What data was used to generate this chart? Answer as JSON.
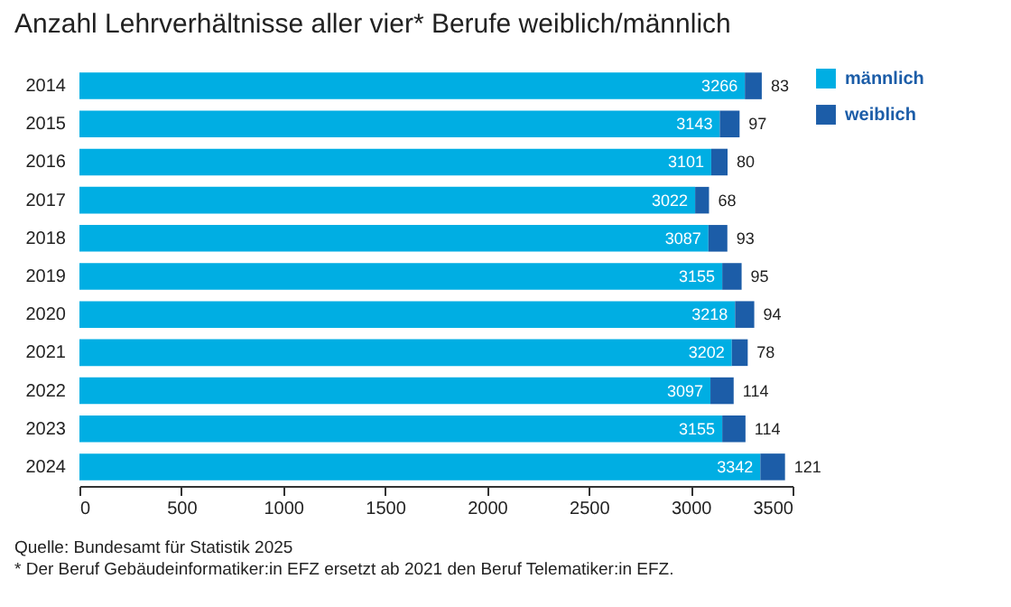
{
  "chart_data": {
    "type": "bar",
    "orientation": "horizontal",
    "stacked": true,
    "title": "Anzahl Lehrverhältnisse aller vier* Berufe weiblich/männlich",
    "categories": [
      "2014",
      "2015",
      "2016",
      "2017",
      "2018",
      "2019",
      "2020",
      "2021",
      "2022",
      "2023",
      "2024"
    ],
    "series": [
      {
        "name": "männlich",
        "color": "#00aee3",
        "values": [
          3266,
          3143,
          3101,
          3022,
          3087,
          3155,
          3218,
          3202,
          3097,
          3155,
          3342
        ]
      },
      {
        "name": "weiblich",
        "color": "#1c5da8",
        "values": [
          83,
          97,
          80,
          68,
          93,
          95,
          94,
          78,
          114,
          114,
          121
        ]
      }
    ],
    "xlim": [
      0,
      3500
    ],
    "xticks": [
      0,
      500,
      1000,
      1500,
      2000,
      2500,
      3000,
      3500
    ],
    "data_labels": true,
    "grid": false,
    "legend": "top right",
    "annotations": [
      "Quelle: Bundesamt für Statistik 2025",
      "* Der Beruf Gebäudeinformatiker:in EFZ ersetzt ab 2021 den Beruf Telematiker:in EFZ."
    ]
  }
}
